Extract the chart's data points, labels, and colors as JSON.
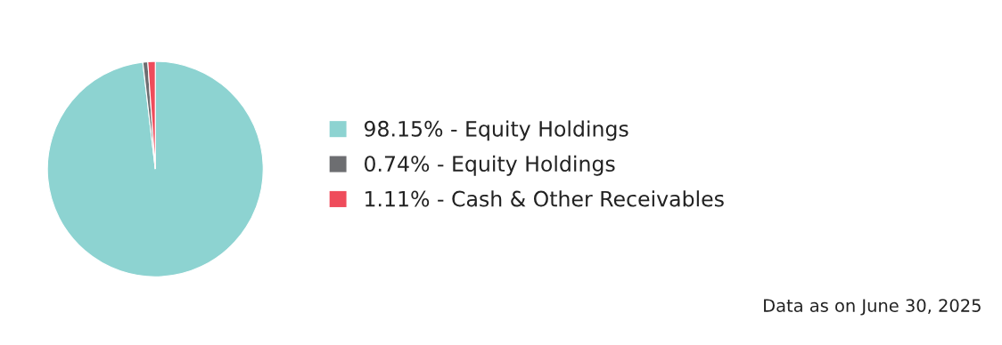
{
  "chart_data": {
    "type": "pie",
    "categories": [
      "98.15% - Equity Holdings",
      "0.74% - Equity Holdings",
      "1.11% - Cash & Other Receivables"
    ],
    "values": [
      98.15,
      0.74,
      1.11
    ],
    "colors": [
      "#8dd3d1",
      "#6d6e71",
      "#ef4c5b"
    ],
    "legend": "right",
    "annotations": [
      "Data as on June 30, 2025"
    ]
  }
}
